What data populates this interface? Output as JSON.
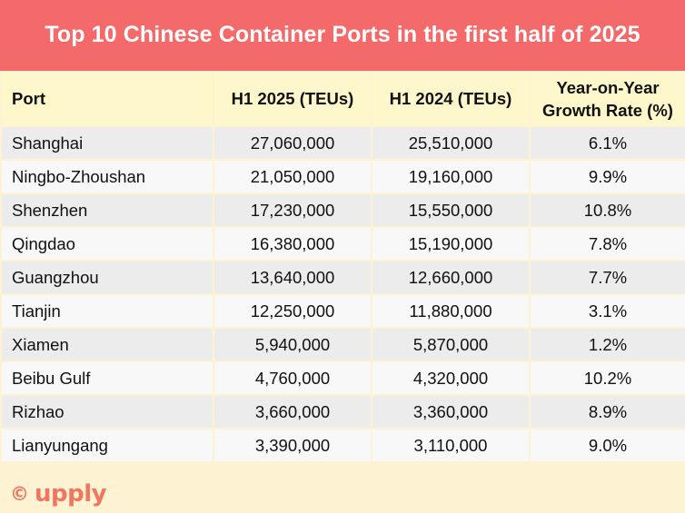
{
  "title": "Top 10 Chinese Container Ports in the first half of 2025",
  "logo": {
    "copyright": "©",
    "brand": "upply"
  },
  "colors": {
    "title_bg": "#f46a6a",
    "header_bg": "#fff7cc",
    "brand": "#f2765f"
  },
  "chart_data": {
    "type": "table",
    "title": "Top 10 Chinese Container Ports in the first half of 2025",
    "columns": [
      "Port",
      "H1 2025 (TEUs)",
      "H1 2024 (TEUs)",
      "Year-on-Year Growth Rate (%)"
    ],
    "rows": [
      [
        "Shanghai",
        "27,060,000",
        "25,510,000",
        "6.1%"
      ],
      [
        "Ningbo-Zhoushan",
        "21,050,000",
        "19,160,000",
        "9.9%"
      ],
      [
        "Shenzhen",
        "17,230,000",
        "15,550,000",
        "10.8%"
      ],
      [
        "Qingdao",
        "16,380,000",
        "15,190,000",
        "7.8%"
      ],
      [
        "Guangzhou",
        "13,640,000",
        "12,660,000",
        "7.7%"
      ],
      [
        "Tianjin",
        "12,250,000",
        "11,880,000",
        "3.1%"
      ],
      [
        "Xiamen",
        "5,940,000",
        "5,870,000",
        "1.2%"
      ],
      [
        "Beibu Gulf",
        "4,760,000",
        "4,320,000",
        "10.2%"
      ],
      [
        "Rizhao",
        "3,660,000",
        "3,360,000",
        "8.9%"
      ],
      [
        "Lianyungang",
        "3,390,000",
        "3,110,000",
        "9.0%"
      ]
    ]
  }
}
